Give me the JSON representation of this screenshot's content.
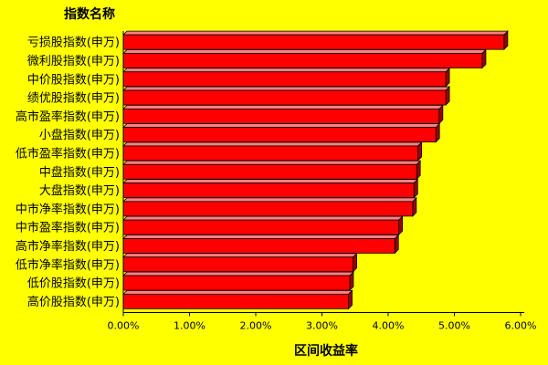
{
  "chart_data": {
    "type": "bar",
    "orientation": "horizontal",
    "category_axis_title": "指数名称",
    "xlabel": "区间收益率",
    "categories": [
      "亏损股指数(申万)",
      "微利股指数(申万)",
      "中价股指数(申万)",
      "绩优股指数(申万)",
      "高市盈率指数(申万)",
      "小盘指数(申万)",
      "低市盈率指数(申万)",
      "中盘指数(申万)",
      "大盘指数(申万)",
      "中市净率指数(申万)",
      "中市盈率指数(申万)",
      "高市净率指数(申万)",
      "低市净率指数(申万)",
      "低价股指数(申万)",
      "高价股指数(申万)"
    ],
    "values": [
      5.75,
      5.42,
      4.87,
      4.87,
      4.77,
      4.72,
      4.45,
      4.43,
      4.39,
      4.37,
      4.16,
      4.1,
      3.47,
      3.42,
      3.4
    ],
    "value_unit": "%",
    "xlim": [
      0,
      6
    ],
    "xticks": [
      "0.00%",
      "1.00%",
      "2.00%",
      "3.00%",
      "4.00%",
      "5.00%",
      "6.00%"
    ],
    "grid": false,
    "legend": "none",
    "colors": {
      "background": "#ffff00",
      "bar_fill": "#ff0000",
      "bar_top": "#ff8080",
      "bar_side": "#990000",
      "bar_edge": "#000000"
    }
  }
}
